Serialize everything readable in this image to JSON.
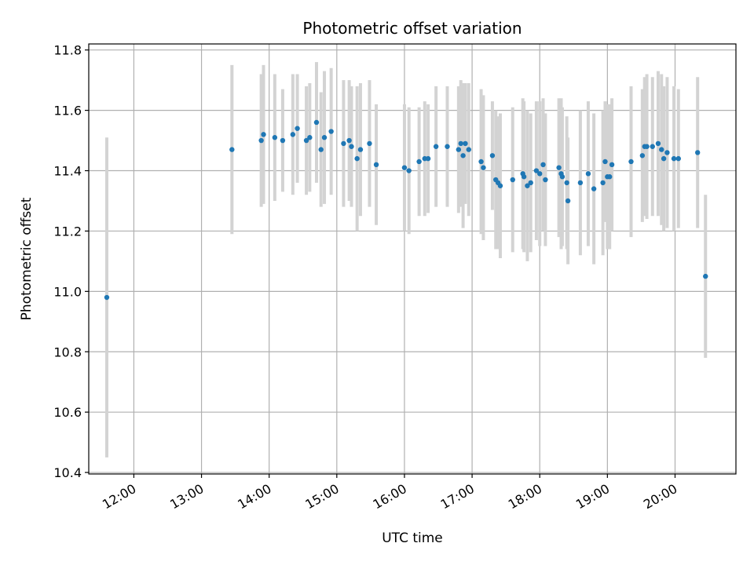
{
  "chart_data": {
    "type": "scatter",
    "title": "Photometric offset variation",
    "xlabel": "UTC time",
    "ylabel": "Photometric offset",
    "xlim": [
      "11:20",
      "20:54"
    ],
    "ylim": [
      10.395,
      11.82
    ],
    "x_ticks": [
      "12:00",
      "13:00",
      "14:00",
      "15:00",
      "16:00",
      "17:00",
      "18:00",
      "19:00",
      "20:00"
    ],
    "y_ticks": [
      "10.4",
      "10.6",
      "10.8",
      "11.0",
      "11.2",
      "11.4",
      "11.6",
      "11.8"
    ],
    "grid": true,
    "colors": {
      "points": "#1f77b4",
      "error_bars": "#d3d3d3",
      "grid": "#b0b0b0"
    },
    "series": [
      {
        "x": [
          "11:36",
          "13:27",
          "13:53",
          "13:55",
          "14:05",
          "14:12",
          "14:21",
          "14:25",
          "14:33",
          "14:36",
          "14:42",
          "14:46",
          "14:49",
          "14:55",
          "15:06",
          "15:11",
          "15:13",
          "15:18",
          "15:21",
          "15:29",
          "15:35",
          "16:00",
          "16:04",
          "16:13",
          "16:18",
          "16:21",
          "16:28",
          "16:38",
          "16:48",
          "16:50",
          "16:52",
          "16:54",
          "16:57",
          "17:08",
          "17:10",
          "17:18",
          "17:21",
          "17:23",
          "17:25",
          "17:36",
          "17:45",
          "17:46",
          "17:49",
          "17:52",
          "17:57",
          "18:00",
          "18:03",
          "18:05",
          "18:17",
          "18:19",
          "18:20",
          "18:24",
          "18:25",
          "18:36",
          "18:43",
          "18:48",
          "18:56",
          "18:58",
          "19:00",
          "19:02",
          "19:04",
          "19:21",
          "19:31",
          "19:33",
          "19:35",
          "19:40",
          "19:45",
          "19:48",
          "19:50",
          "19:53",
          "19:59",
          "20:03",
          "20:20",
          "20:27"
        ],
        "y": [
          10.98,
          11.47,
          11.5,
          11.52,
          11.51,
          11.5,
          11.52,
          11.54,
          11.5,
          11.51,
          11.56,
          11.47,
          11.51,
          11.53,
          11.49,
          11.5,
          11.48,
          11.44,
          11.47,
          11.49,
          11.42,
          11.41,
          11.4,
          11.43,
          11.44,
          11.44,
          11.48,
          11.48,
          11.47,
          11.49,
          11.45,
          11.49,
          11.47,
          11.43,
          11.41,
          11.45,
          11.37,
          11.36,
          11.35,
          11.37,
          11.39,
          11.38,
          11.35,
          11.36,
          11.4,
          11.39,
          11.42,
          11.37,
          11.41,
          11.39,
          11.38,
          11.36,
          11.3,
          11.36,
          11.39,
          11.34,
          11.36,
          11.43,
          11.38,
          11.38,
          11.42,
          11.43,
          11.45,
          11.48,
          11.48,
          11.48,
          11.49,
          11.47,
          11.44,
          11.46,
          11.44,
          11.44,
          11.46,
          11.05
        ],
        "yerr": [
          0.53,
          0.28,
          0.22,
          0.23,
          0.21,
          0.17,
          0.2,
          0.18,
          0.18,
          0.18,
          0.2,
          0.19,
          0.22,
          0.21,
          0.21,
          0.2,
          0.2,
          0.24,
          0.22,
          0.21,
          0.2,
          0.21,
          0.21,
          0.18,
          0.19,
          0.18,
          0.2,
          0.2,
          0.21,
          0.21,
          0.24,
          0.2,
          0.22,
          0.24,
          0.24,
          0.18,
          0.23,
          0.22,
          0.24,
          0.24,
          0.25,
          0.25,
          0.25,
          0.23,
          0.23,
          0.24,
          0.22,
          0.22,
          0.23,
          0.25,
          0.23,
          0.22,
          0.21,
          0.24,
          0.24,
          0.25,
          0.24,
          0.2,
          0.24,
          0.24,
          0.22,
          0.25,
          0.22,
          0.23,
          0.24,
          0.23,
          0.24,
          0.25,
          0.24,
          0.25,
          0.24,
          0.23,
          0.25,
          0.27
        ]
      }
    ]
  }
}
